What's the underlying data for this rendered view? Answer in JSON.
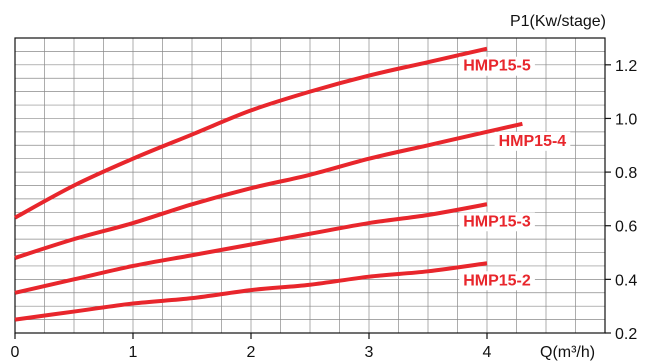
{
  "chart_data": {
    "type": "line",
    "title": "",
    "xlabel": "Q(m³/h)",
    "ylabel": "P1(Kw/stage)",
    "xlim": [
      0,
      5
    ],
    "ylim": [
      0.2,
      1.3
    ],
    "x_ticks": [
      {
        "value": 0,
        "label": "0"
      },
      {
        "value": 1,
        "label": "1"
      },
      {
        "value": 2,
        "label": "2"
      },
      {
        "value": 3,
        "label": "3"
      },
      {
        "value": 4,
        "label": "4"
      }
    ],
    "y_ticks": [
      {
        "value": 0.2,
        "label": "0.2"
      },
      {
        "value": 0.4,
        "label": "0.4"
      },
      {
        "value": 0.6,
        "label": "0.6"
      },
      {
        "value": 0.8,
        "label": "0.8"
      },
      {
        "value": 1.0,
        "label": "1.0"
      },
      {
        "value": 1.2,
        "label": "1.2"
      }
    ],
    "grid": true,
    "y_axis_side": "right",
    "series_color": "#e8262c",
    "series": [
      {
        "name": "HMP15-5",
        "x": [
          0,
          0.5,
          1,
          1.5,
          2,
          2.5,
          3,
          3.5,
          4
        ],
        "values": [
          0.63,
          0.75,
          0.85,
          0.94,
          1.03,
          1.1,
          1.16,
          1.21,
          1.26
        ]
      },
      {
        "name": "HMP15-4",
        "x": [
          0,
          0.5,
          1,
          1.5,
          2,
          2.5,
          3,
          3.5,
          4,
          4.3
        ],
        "values": [
          0.48,
          0.55,
          0.61,
          0.68,
          0.74,
          0.79,
          0.85,
          0.9,
          0.95,
          0.98
        ]
      },
      {
        "name": "HMP15-3",
        "x": [
          0,
          0.5,
          1,
          1.5,
          2,
          2.5,
          3,
          3.5,
          4
        ],
        "values": [
          0.35,
          0.4,
          0.45,
          0.49,
          0.53,
          0.57,
          0.61,
          0.64,
          0.68
        ]
      },
      {
        "name": "HMP15-2",
        "x": [
          0,
          0.5,
          1,
          1.5,
          2,
          2.5,
          3,
          3.5,
          4
        ],
        "values": [
          0.25,
          0.28,
          0.31,
          0.33,
          0.36,
          0.38,
          0.41,
          0.43,
          0.46
        ]
      }
    ]
  }
}
